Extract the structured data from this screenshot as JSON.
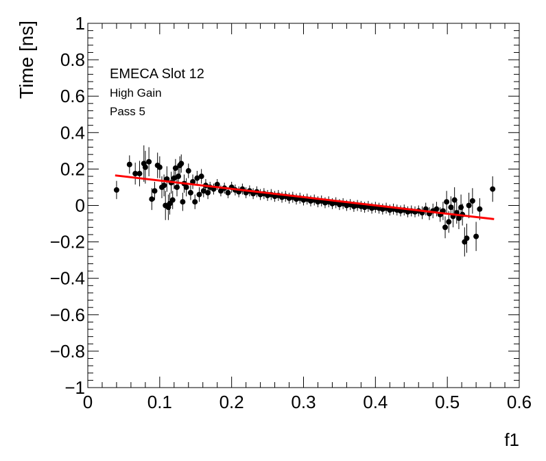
{
  "chart_data": {
    "type": "scatter",
    "xlabel": "f1",
    "ylabel": "Time [ns]",
    "xlim": [
      0,
      0.6
    ],
    "ylim": [
      -1,
      1
    ],
    "x_ticks": [
      "0",
      "0.1",
      "0.2",
      "0.3",
      "0.4",
      "0.5",
      "0.6"
    ],
    "y_ticks": [
      "−1",
      "−0.8",
      "−0.6",
      "−0.4",
      "−0.2",
      "0",
      "0.2",
      "0.4",
      "0.6",
      "0.8",
      "1"
    ],
    "grid": false,
    "annotations": [
      "EMECA Slot 12",
      "High Gain",
      "Pass 5"
    ],
    "series": [
      {
        "marker_color": "#000000",
        "points": [
          [
            0.04,
            0.085,
            0.05
          ],
          [
            0.058,
            0.225,
            0.05
          ],
          [
            0.066,
            0.175,
            0.06
          ],
          [
            0.072,
            0.175,
            0.07
          ],
          [
            0.078,
            0.23,
            0.1
          ],
          [
            0.08,
            0.21,
            0.09
          ],
          [
            0.085,
            0.24,
            0.08
          ],
          [
            0.089,
            0.035,
            0.06
          ],
          [
            0.093,
            0.08,
            0.05
          ],
          [
            0.097,
            0.22,
            0.07
          ],
          [
            0.1,
            0.21,
            0.06
          ],
          [
            0.103,
            0.1,
            0.06
          ],
          [
            0.106,
            0.11,
            0.06
          ],
          [
            0.108,
            0.0,
            0.08
          ],
          [
            0.11,
            0.145,
            0.07
          ],
          [
            0.112,
            -0.01,
            0.07
          ],
          [
            0.114,
            0.01,
            0.06
          ],
          [
            0.116,
            0.125,
            0.06
          ],
          [
            0.118,
            0.03,
            0.05
          ],
          [
            0.12,
            0.15,
            0.06
          ],
          [
            0.122,
            0.205,
            0.05
          ],
          [
            0.124,
            0.1,
            0.05
          ],
          [
            0.126,
            0.16,
            0.06
          ],
          [
            0.128,
            0.22,
            0.05
          ],
          [
            0.13,
            0.23,
            0.05
          ],
          [
            0.132,
            0.02,
            0.05
          ],
          [
            0.134,
            0.12,
            0.05
          ],
          [
            0.137,
            0.1,
            0.05
          ],
          [
            0.14,
            0.19,
            0.04
          ],
          [
            0.143,
            0.07,
            0.04
          ],
          [
            0.146,
            0.13,
            0.04
          ],
          [
            0.149,
            0.02,
            0.04
          ],
          [
            0.152,
            0.15,
            0.04
          ],
          [
            0.155,
            0.06,
            0.04
          ],
          [
            0.158,
            0.16,
            0.04
          ],
          [
            0.161,
            0.08,
            0.035
          ],
          [
            0.164,
            0.11,
            0.035
          ],
          [
            0.167,
            0.07,
            0.035
          ],
          [
            0.17,
            0.1,
            0.03
          ],
          [
            0.175,
            0.09,
            0.03
          ],
          [
            0.18,
            0.115,
            0.03
          ],
          [
            0.185,
            0.08,
            0.03
          ],
          [
            0.19,
            0.095,
            0.03
          ],
          [
            0.195,
            0.07,
            0.03
          ],
          [
            0.2,
            0.1,
            0.03
          ],
          [
            0.205,
            0.085,
            0.03
          ],
          [
            0.21,
            0.075,
            0.03
          ],
          [
            0.215,
            0.09,
            0.03
          ],
          [
            0.22,
            0.07,
            0.03
          ],
          [
            0.225,
            0.08,
            0.03
          ],
          [
            0.23,
            0.065,
            0.03
          ],
          [
            0.235,
            0.075,
            0.03
          ],
          [
            0.24,
            0.06,
            0.03
          ],
          [
            0.245,
            0.065,
            0.03
          ],
          [
            0.25,
            0.055,
            0.03
          ],
          [
            0.255,
            0.06,
            0.03
          ],
          [
            0.26,
            0.05,
            0.03
          ],
          [
            0.265,
            0.055,
            0.03
          ],
          [
            0.27,
            0.045,
            0.03
          ],
          [
            0.275,
            0.05,
            0.03
          ],
          [
            0.28,
            0.04,
            0.03
          ],
          [
            0.285,
            0.045,
            0.03
          ],
          [
            0.29,
            0.035,
            0.03
          ],
          [
            0.295,
            0.04,
            0.03
          ],
          [
            0.3,
            0.03,
            0.03
          ],
          [
            0.305,
            0.035,
            0.03
          ],
          [
            0.31,
            0.025,
            0.03
          ],
          [
            0.315,
            0.03,
            0.03
          ],
          [
            0.32,
            0.02,
            0.03
          ],
          [
            0.325,
            0.025,
            0.03
          ],
          [
            0.33,
            0.015,
            0.03
          ],
          [
            0.335,
            0.02,
            0.03
          ],
          [
            0.34,
            0.01,
            0.03
          ],
          [
            0.345,
            0.015,
            0.03
          ],
          [
            0.35,
            0.005,
            0.03
          ],
          [
            0.355,
            0.01,
            0.03
          ],
          [
            0.36,
            0.0,
            0.03
          ],
          [
            0.365,
            0.005,
            0.03
          ],
          [
            0.37,
            -0.005,
            0.03
          ],
          [
            0.375,
            0.0,
            0.03
          ],
          [
            0.38,
            -0.005,
            0.03
          ],
          [
            0.385,
            -0.01,
            0.03
          ],
          [
            0.39,
            -0.005,
            0.03
          ],
          [
            0.395,
            -0.015,
            0.03
          ],
          [
            0.4,
            -0.01,
            0.03
          ],
          [
            0.405,
            -0.015,
            0.03
          ],
          [
            0.41,
            -0.02,
            0.03
          ],
          [
            0.415,
            -0.015,
            0.03
          ],
          [
            0.42,
            -0.025,
            0.03
          ],
          [
            0.425,
            -0.02,
            0.03
          ],
          [
            0.43,
            -0.025,
            0.03
          ],
          [
            0.435,
            -0.03,
            0.03
          ],
          [
            0.44,
            -0.025,
            0.03
          ],
          [
            0.445,
            -0.035,
            0.03
          ],
          [
            0.45,
            -0.03,
            0.03
          ],
          [
            0.455,
            -0.035,
            0.03
          ],
          [
            0.46,
            -0.03,
            0.03
          ],
          [
            0.465,
            -0.04,
            0.035
          ],
          [
            0.47,
            -0.02,
            0.035
          ],
          [
            0.475,
            -0.045,
            0.035
          ],
          [
            0.48,
            -0.03,
            0.04
          ],
          [
            0.485,
            -0.02,
            0.04
          ],
          [
            0.49,
            -0.05,
            0.04
          ],
          [
            0.494,
            -0.03,
            0.05
          ],
          [
            0.497,
            -0.12,
            0.06
          ],
          [
            0.499,
            0.02,
            0.06
          ],
          [
            0.502,
            -0.09,
            0.06
          ],
          [
            0.505,
            -0.01,
            0.06
          ],
          [
            0.508,
            -0.06,
            0.06
          ],
          [
            0.51,
            0.03,
            0.07
          ],
          [
            0.513,
            -0.04,
            0.06
          ],
          [
            0.516,
            -0.07,
            0.06
          ],
          [
            0.519,
            -0.01,
            0.07
          ],
          [
            0.521,
            -0.05,
            0.06
          ],
          [
            0.524,
            -0.2,
            0.08
          ],
          [
            0.527,
            -0.18,
            0.08
          ],
          [
            0.53,
            0.0,
            0.07
          ],
          [
            0.535,
            0.025,
            0.07
          ],
          [
            0.54,
            -0.17,
            0.08
          ],
          [
            0.545,
            -0.02,
            0.06
          ],
          [
            0.563,
            0.09,
            0.07
          ]
        ]
      },
      {
        "type": "line",
        "color": "#ff0000",
        "x": [
          0.038,
          0.565
        ],
        "y": [
          0.165,
          -0.075
        ]
      }
    ]
  }
}
